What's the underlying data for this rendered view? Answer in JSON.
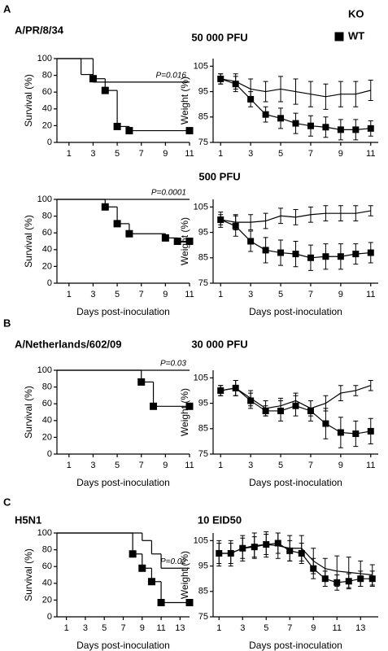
{
  "legend": {
    "series": [
      {
        "name": "KO",
        "marker": "triangle"
      },
      {
        "name": "WT",
        "marker": "square"
      }
    ]
  },
  "rows": [
    {
      "label": "A",
      "strain": "A/PR/8/34",
      "dose": "50 000 PFU"
    },
    {
      "dose": "500 PFU"
    },
    {
      "label": "B",
      "strain": "A/Netherlands/602/09",
      "dose": "30 000 PFU"
    },
    {
      "label": "C",
      "strain": "H5N1",
      "dose": "10 EID50"
    }
  ],
  "chart_data": [
    {
      "type": "step",
      "ylabel": "Survival (%)",
      "annotation": "P=0.016",
      "xlim": [
        0,
        11
      ],
      "xticks": [
        1,
        3,
        5,
        7,
        9,
        11
      ],
      "ylim": [
        0,
        100
      ],
      "yticks": [
        0,
        20,
        40,
        60,
        80,
        100
      ],
      "series": [
        {
          "marker": "triangle",
          "color": "#000000",
          "x": [
            0,
            2,
            3,
            11
          ],
          "values": [
            100,
            81,
            72,
            72
          ]
        },
        {
          "marker": "square",
          "color": "#000000",
          "x": [
            0,
            3,
            4,
            5,
            6,
            11
          ],
          "values": [
            100,
            76,
            62,
            19,
            14,
            14
          ]
        }
      ]
    },
    {
      "type": "line",
      "ylabel": "Weight (%)",
      "xlim": [
        0.5,
        11.5
      ],
      "xticks": [
        1,
        3,
        5,
        7,
        9,
        11
      ],
      "ylim": [
        75,
        108
      ],
      "yticks": [
        75,
        85,
        95,
        105
      ],
      "series": [
        {
          "marker": "triangle",
          "color": "#000000",
          "x": [
            1,
            2,
            3,
            4,
            5,
            6,
            7,
            8,
            9,
            10,
            11
          ],
          "values": [
            100,
            99,
            96,
            95,
            96,
            95,
            94,
            93,
            94,
            94,
            95.5
          ],
          "errors": [
            2,
            3,
            4,
            4,
            5,
            5,
            5,
            5,
            5,
            5,
            4
          ]
        },
        {
          "marker": "square",
          "color": "#000000",
          "x": [
            1,
            2,
            3,
            4,
            5,
            6,
            7,
            8,
            9,
            10,
            11
          ],
          "values": [
            100,
            98,
            92,
            86,
            84.5,
            82.5,
            81.5,
            81,
            80,
            80,
            80.5
          ],
          "errors": [
            2,
            3,
            3,
            3,
            4,
            4,
            4,
            4,
            4,
            4,
            3
          ]
        }
      ]
    },
    {
      "type": "step",
      "ylabel": "Survival (%)",
      "xlabel": "Days post-inoculation",
      "annotation": "P=0.0001",
      "xlim": [
        0,
        11
      ],
      "xticks": [
        1,
        3,
        5,
        7,
        9,
        11
      ],
      "ylim": [
        0,
        100
      ],
      "yticks": [
        0,
        20,
        40,
        60,
        80,
        100
      ],
      "series": [
        {
          "marker": "triangle",
          "color": "#000000",
          "x": [
            0,
            11
          ],
          "values": [
            100,
            100
          ]
        },
        {
          "marker": "square",
          "color": "#000000",
          "x": [
            0,
            4,
            5,
            6,
            9,
            10,
            11
          ],
          "values": [
            100,
            91,
            71,
            59,
            54,
            50,
            50
          ]
        }
      ]
    },
    {
      "type": "line",
      "ylabel": "Weight (%)",
      "xlabel": "Days post-inoculation",
      "xlim": [
        0.5,
        11.5
      ],
      "xticks": [
        1,
        3,
        5,
        7,
        9,
        11
      ],
      "ylim": [
        75,
        108
      ],
      "yticks": [
        75,
        85,
        95,
        105
      ],
      "series": [
        {
          "marker": "triangle",
          "color": "#000000",
          "x": [
            1,
            2,
            3,
            4,
            5,
            6,
            7,
            8,
            9,
            10,
            11
          ],
          "values": [
            100,
            99,
            99,
            99.5,
            101.5,
            101,
            102,
            102.5,
            102.5,
            102.5,
            103.5
          ],
          "errors": [
            2,
            3,
            3,
            3,
            3,
            3,
            3,
            3,
            3,
            3,
            2
          ]
        },
        {
          "marker": "square",
          "color": "#000000",
          "x": [
            1,
            2,
            3,
            4,
            5,
            6,
            7,
            8,
            9,
            10,
            11
          ],
          "values": [
            100,
            97.5,
            91.5,
            88,
            87,
            86.5,
            85,
            85.5,
            85.5,
            86.5,
            87
          ],
          "errors": [
            3,
            4,
            4,
            5,
            5,
            5,
            5,
            5,
            5,
            4,
            4
          ]
        }
      ]
    },
    {
      "type": "step",
      "ylabel": "Survival (%)",
      "xlabel": "Days post-inoculation",
      "annotation": "P=0.03",
      "xlim": [
        0,
        11
      ],
      "xticks": [
        1,
        3,
        5,
        7,
        9,
        11
      ],
      "ylim": [
        0,
        100
      ],
      "yticks": [
        0,
        20,
        40,
        60,
        80,
        100
      ],
      "series": [
        {
          "marker": "triangle",
          "color": "#000000",
          "x": [
            0,
            11
          ],
          "values": [
            100,
            100
          ]
        },
        {
          "marker": "square",
          "color": "#000000",
          "x": [
            0,
            7,
            8,
            11
          ],
          "values": [
            100,
            86,
            57,
            57
          ]
        }
      ]
    },
    {
      "type": "line",
      "ylabel": "Weight (%)",
      "xlabel": "Days post-inoculation",
      "xlim": [
        0.5,
        11.5
      ],
      "xticks": [
        1,
        3,
        5,
        7,
        9,
        11
      ],
      "ylim": [
        75,
        108
      ],
      "yticks": [
        75,
        85,
        95,
        105
      ],
      "series": [
        {
          "marker": "triangle",
          "color": "#000000",
          "x": [
            1,
            2,
            3,
            4,
            5,
            6,
            7,
            8,
            9,
            10,
            11
          ],
          "values": [
            100,
            101,
            97,
            93,
            94,
            96,
            93,
            95,
            99,
            100,
            102
          ],
          "errors": [
            2,
            3,
            3,
            3,
            3,
            3,
            3,
            3,
            3,
            2,
            2
          ]
        },
        {
          "marker": "square",
          "color": "#000000",
          "x": [
            1,
            2,
            3,
            4,
            5,
            6,
            7,
            8,
            9,
            10,
            11
          ],
          "values": [
            100,
            101,
            96,
            92,
            92,
            94,
            92,
            87,
            83.5,
            83,
            84
          ],
          "errors": [
            2,
            3,
            3,
            2,
            4,
            4,
            4,
            6,
            6,
            5,
            5
          ]
        }
      ]
    },
    {
      "type": "step",
      "ylabel": "Survival (%)",
      "xlabel": "Days post-inoculation",
      "annotation": "P=0.02",
      "xlim": [
        0,
        14
      ],
      "xticks": [
        1,
        3,
        5,
        7,
        9,
        11,
        13
      ],
      "ylim": [
        0,
        100
      ],
      "yticks": [
        0,
        20,
        40,
        60,
        80,
        100
      ],
      "series": [
        {
          "marker": "triangle",
          "color": "#000000",
          "x": [
            0,
            9,
            10,
            11,
            14
          ],
          "values": [
            100,
            91,
            75,
            58,
            58
          ]
        },
        {
          "marker": "square",
          "color": "#000000",
          "x": [
            0,
            8,
            9,
            10,
            11,
            14
          ],
          "values": [
            100,
            75,
            58,
            42,
            17,
            17
          ]
        }
      ]
    },
    {
      "type": "line",
      "ylabel": "Weight (%)",
      "xlabel": "Days post-inoculation",
      "xlim": [
        0.5,
        14.5
      ],
      "xticks": [
        1,
        3,
        5,
        7,
        9,
        11,
        13
      ],
      "ylim": [
        75,
        108
      ],
      "yticks": [
        75,
        85,
        95,
        105
      ],
      "series": [
        {
          "marker": "triangle",
          "color": "#000000",
          "x": [
            1,
            2,
            3,
            4,
            5,
            6,
            7,
            8,
            9,
            10,
            11,
            12,
            13,
            14
          ],
          "values": [
            100,
            100,
            102,
            103,
            103.5,
            103,
            102,
            102,
            97,
            94,
            93,
            92.5,
            92,
            91.5
          ],
          "errors": [
            5,
            5,
            5,
            5,
            5,
            5,
            5,
            5,
            5,
            4,
            6,
            6,
            5,
            4
          ]
        },
        {
          "marker": "square",
          "color": "#000000",
          "x": [
            1,
            2,
            3,
            4,
            5,
            6,
            7,
            8,
            9,
            10,
            11,
            12,
            13,
            14
          ],
          "values": [
            100,
            100,
            102,
            102.5,
            103.5,
            104,
            101,
            100,
            94,
            90,
            88.5,
            89,
            90,
            90
          ],
          "errors": [
            4,
            4,
            4,
            4,
            4,
            4,
            4,
            4,
            4,
            3,
            3,
            3,
            3,
            3
          ]
        }
      ]
    }
  ]
}
